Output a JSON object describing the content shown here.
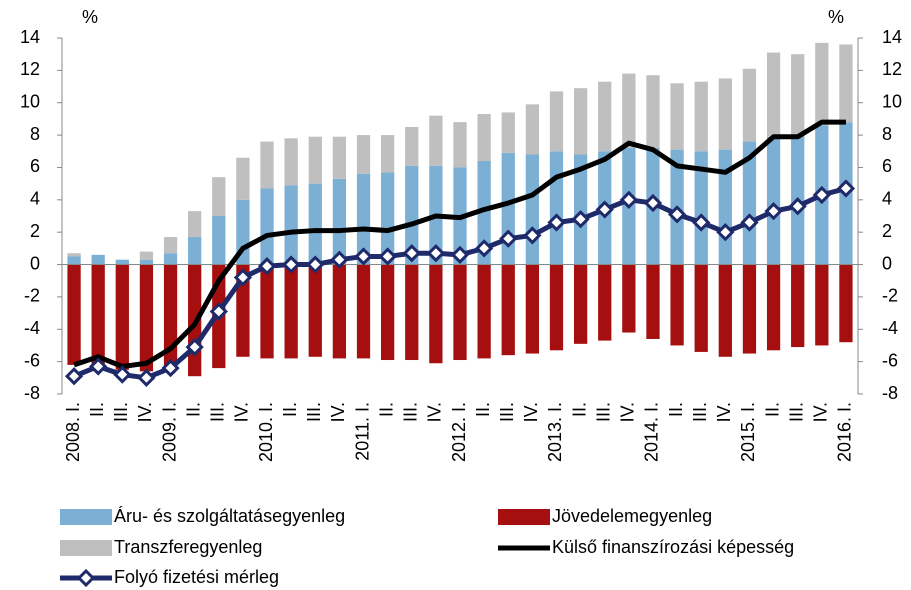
{
  "chart_data": {
    "type": "combo",
    "ylabel": "%",
    "y2label": "%",
    "categories": [
      "2008. I.",
      "II.",
      "III.",
      "IV.",
      "2009. I.",
      "II.",
      "III.",
      "IV.",
      "2010. I.",
      "II.",
      "III.",
      "IV.",
      "2011. I.",
      "II.",
      "III.",
      "IV.",
      "2012. I.",
      "II.",
      "III.",
      "IV.",
      "2013. I.",
      "II.",
      "III.",
      "IV.",
      "2014. I.",
      "II.",
      "III.",
      "IV.",
      "2015. I.",
      "II.",
      "III.",
      "IV.",
      "2016. I."
    ],
    "ylim": [
      -8,
      14
    ],
    "yticks": [
      -8,
      -6,
      -4,
      -2,
      0,
      2,
      4,
      6,
      8,
      10,
      12,
      14
    ],
    "y2lim": [
      -8,
      14
    ],
    "y2ticks": [
      -8,
      -6,
      -4,
      -2,
      0,
      2,
      4,
      6,
      8,
      10,
      12,
      14
    ],
    "series": [
      {
        "name": "Áru- és szolgáltatásegyenleg",
        "kind": "bar",
        "color": "#7bafd4",
        "values": [
          0.5,
          0.6,
          0.3,
          0.3,
          0.7,
          1.7,
          3.0,
          4.0,
          4.7,
          4.9,
          5.0,
          5.3,
          5.6,
          5.7,
          6.1,
          6.1,
          6.0,
          6.4,
          6.9,
          6.8,
          7.0,
          6.8,
          7.0,
          7.2,
          7.2,
          7.1,
          7.0,
          7.1,
          7.6,
          7.9,
          8.0,
          8.6,
          8.8
        ]
      },
      {
        "name": "Jövedelemegyenleg",
        "kind": "bar",
        "color": "#a50f0f",
        "values": [
          -6.2,
          -6.2,
          -6.5,
          -6.6,
          -6.4,
          -6.9,
          -6.4,
          -5.7,
          -5.8,
          -5.8,
          -5.7,
          -5.8,
          -5.8,
          -5.9,
          -5.9,
          -6.1,
          -5.9,
          -5.8,
          -5.6,
          -5.5,
          -5.3,
          -4.9,
          -4.7,
          -4.2,
          -4.6,
          -5.0,
          -5.4,
          -5.7,
          -5.5,
          -5.3,
          -5.1,
          -5.0,
          -4.8
        ]
      },
      {
        "name": "Transzferegyenleg",
        "kind": "bar",
        "color": "#bfbfbf",
        "values": [
          0.2,
          0,
          0,
          0.5,
          1.0,
          1.6,
          2.4,
          2.6,
          2.9,
          2.9,
          2.9,
          2.6,
          2.4,
          2.3,
          2.4,
          3.1,
          2.8,
          2.9,
          2.5,
          3.1,
          3.7,
          4.1,
          4.3,
          4.6,
          4.5,
          4.1,
          4.3,
          4.4,
          4.5,
          5.2,
          5.0,
          5.1,
          4.8
        ]
      },
      {
        "name": "Külső finanszírozási képesség",
        "kind": "line",
        "color": "#000000",
        "values": [
          -6.2,
          -5.7,
          -6.3,
          -6.1,
          -5.2,
          -3.7,
          -1.0,
          1.0,
          1.8,
          2.0,
          2.1,
          2.1,
          2.2,
          2.1,
          2.5,
          3.0,
          2.9,
          3.4,
          3.8,
          4.3,
          5.4,
          5.9,
          6.5,
          7.5,
          7.1,
          6.1,
          5.9,
          5.7,
          6.6,
          7.9,
          7.9,
          8.8,
          8.8
        ]
      },
      {
        "name": "Folyó fizetési mérleg",
        "kind": "line",
        "marker": "diamond",
        "color": "#1f2a6b",
        "values": [
          -6.9,
          -6.3,
          -6.8,
          -7.0,
          -6.4,
          -5.1,
          -2.9,
          -0.8,
          -0.1,
          0,
          0,
          0.3,
          0.5,
          0.5,
          0.7,
          0.7,
          0.6,
          1.0,
          1.6,
          1.8,
          2.6,
          2.8,
          3.4,
          4.0,
          3.8,
          3.1,
          2.6,
          2.0,
          2.6,
          3.3,
          3.6,
          4.3,
          4.7
        ]
      }
    ]
  }
}
